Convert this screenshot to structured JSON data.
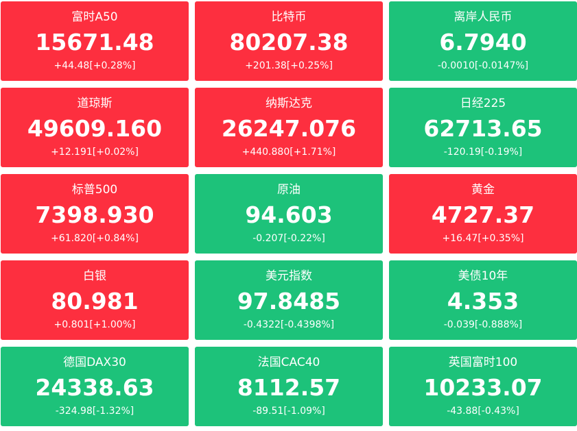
{
  "tiles": [
    {
      "name": "富时A50",
      "price": "15671.48",
      "change": "+44.48[+0.28%]",
      "color": "#fd2f3f"
    },
    {
      "name": "比特币",
      "price": "80207.38",
      "change": "+201.38[+0.25%]",
      "color": "#fd2f3f"
    },
    {
      "name": "离岸人民币",
      "price": "6.7940",
      "change": "-0.0010[-0.0147%]",
      "color": "#1dc27a"
    },
    {
      "name": "道琼斯",
      "price": "49609.160",
      "change": "+12.191[+0.02%]",
      "color": "#fd2f3f"
    },
    {
      "name": "纳斯达克",
      "price": "26247.076",
      "change": "+440.880[+1.71%]",
      "color": "#fd2f3f"
    },
    {
      "name": "日经225",
      "price": "62713.65",
      "change": "-120.19[-0.19%]",
      "color": "#1dc27a"
    },
    {
      "name": "标普500",
      "price": "7398.930",
      "change": "+61.820[+0.84%]",
      "color": "#fd2f3f"
    },
    {
      "name": "原油",
      "price": "94.603",
      "change": "-0.207[-0.22%]",
      "color": "#1dc27a"
    },
    {
      "name": "黄金",
      "price": "4727.37",
      "change": "+16.47[+0.35%]",
      "color": "#fd2f3f"
    },
    {
      "name": "白银",
      "price": "80.981",
      "change": "+0.801[+1.00%]",
      "color": "#fd2f3f"
    },
    {
      "name": "美元指数",
      "price": "97.8485",
      "change": "-0.4322[-0.4398%]",
      "color": "#1dc27a"
    },
    {
      "name": "美债10年",
      "price": "4.353",
      "change": "-0.039[-0.888%]",
      "color": "#1dc27a"
    },
    {
      "name": "德国DAX30",
      "price": "24338.63",
      "change": "-324.98[-1.32%]",
      "color": "#1dc27a"
    },
    {
      "name": "法国CAC40",
      "price": "8112.57",
      "change": "-89.51[-1.09%]",
      "color": "#1dc27a"
    },
    {
      "name": "英国富时100",
      "price": "10233.07",
      "change": "-43.88[-0.43%]",
      "color": "#1dc27a"
    }
  ]
}
